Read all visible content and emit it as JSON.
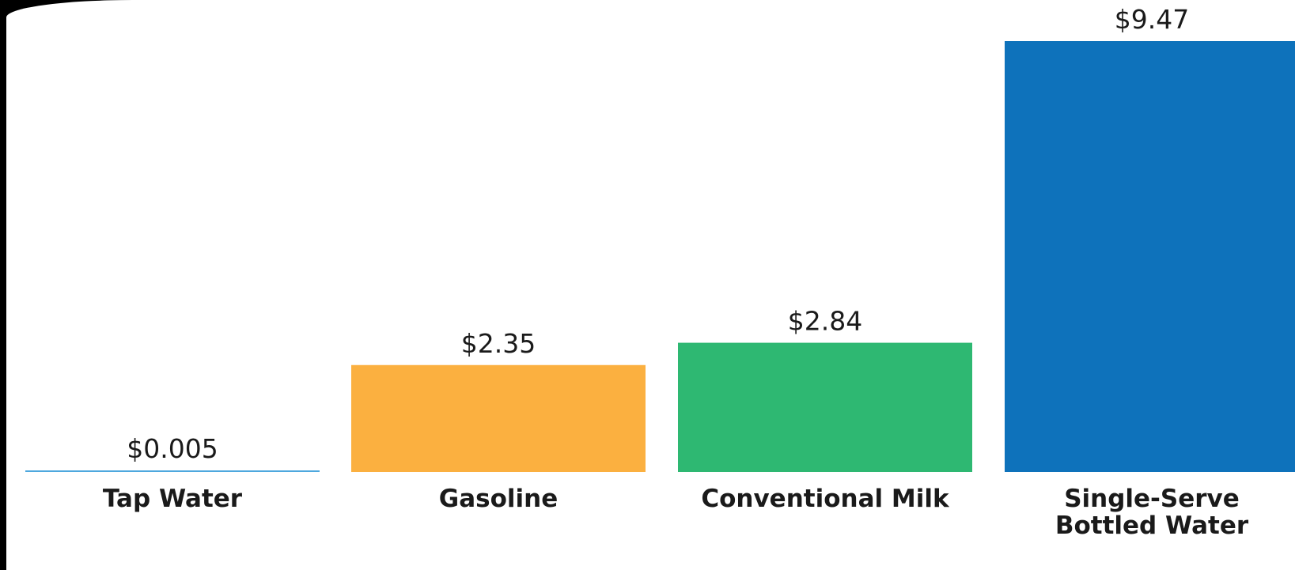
{
  "chart_data": {
    "type": "bar",
    "categories": [
      "Tap Water",
      "Gasoline",
      "Conventional Milk",
      "Single-Serve Bottled Water"
    ],
    "category_lines": [
      [
        "Tap Water"
      ],
      [
        "Gasoline"
      ],
      [
        "Conventional Milk"
      ],
      [
        "Single-Serve",
        "Bottled Water"
      ]
    ],
    "values": [
      0.005,
      2.35,
      2.84,
      9.47
    ],
    "value_labels": [
      "$0.005",
      "$2.35",
      "$2.84",
      "$9.47"
    ],
    "colors": [
      "#4ea8de",
      "#fbb040",
      "#2eb872",
      "#0e72bb"
    ],
    "title": "",
    "xlabel": "",
    "ylabel": "",
    "ylim": [
      0,
      9.47
    ],
    "grid": false,
    "legend": "none"
  }
}
